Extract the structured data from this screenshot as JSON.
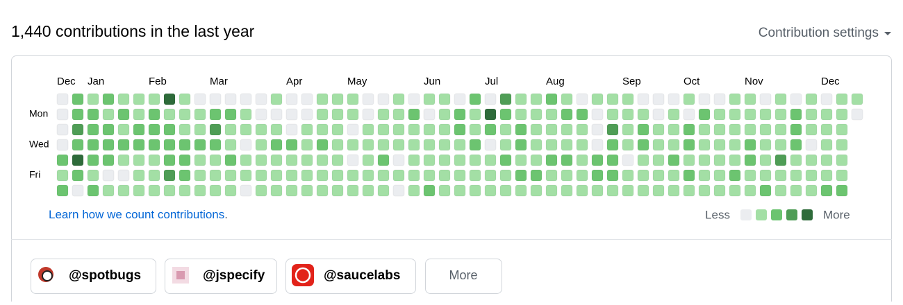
{
  "header": {
    "title": "1,440 contributions in the last year",
    "settings": "Contribution settings"
  },
  "calendar": {
    "months": [
      "Dec",
      null,
      "Jan",
      null,
      null,
      null,
      "Feb",
      null,
      null,
      null,
      "Mar",
      null,
      null,
      null,
      null,
      "Apr",
      null,
      null,
      null,
      "May",
      null,
      null,
      null,
      null,
      "Jun",
      null,
      null,
      null,
      "Jul",
      null,
      null,
      null,
      "Aug",
      null,
      null,
      null,
      null,
      "Sep",
      null,
      null,
      null,
      "Oct",
      null,
      null,
      null,
      "Nov",
      null,
      null,
      null,
      null,
      "Dec",
      null,
      null
    ],
    "weekdays": [
      null,
      "Mon",
      null,
      "Wed",
      null,
      "Fri",
      null
    ],
    "level_colors": [
      "#ebedf0",
      "#a3dfa5",
      "#6cc470",
      "#4f9d56",
      "#2e6b3a"
    ],
    "days": [
      [
        0,
        2,
        1,
        2,
        1,
        1,
        1,
        4,
        1,
        0,
        0,
        0,
        0,
        0,
        1,
        0,
        0,
        1,
        1,
        1,
        0,
        0,
        1,
        0,
        1,
        1,
        0,
        2,
        0,
        3,
        1,
        1,
        2,
        1,
        0,
        1,
        1,
        1,
        0,
        0,
        0,
        1,
        0,
        0,
        1,
        1,
        0,
        1,
        0,
        1,
        0,
        1,
        1
      ],
      [
        0,
        2,
        2,
        1,
        2,
        1,
        2,
        1,
        1,
        1,
        2,
        2,
        1,
        0,
        0,
        0,
        0,
        1,
        1,
        1,
        0,
        1,
        1,
        2,
        0,
        1,
        2,
        1,
        4,
        2,
        1,
        1,
        1,
        2,
        2,
        0,
        1,
        1,
        1,
        0,
        1,
        0,
        2,
        1,
        1,
        1,
        1,
        1,
        2,
        1,
        1,
        1,
        0
      ],
      [
        0,
        3,
        2,
        2,
        1,
        2,
        2,
        2,
        1,
        1,
        3,
        1,
        1,
        1,
        1,
        0,
        1,
        1,
        1,
        0,
        1,
        1,
        1,
        1,
        1,
        1,
        2,
        1,
        2,
        1,
        2,
        1,
        1,
        1,
        1,
        0,
        3,
        1,
        2,
        1,
        1,
        2,
        1,
        1,
        1,
        1,
        1,
        1,
        2,
        1,
        1,
        1,
        null
      ],
      [
        0,
        2,
        2,
        2,
        2,
        2,
        2,
        2,
        2,
        2,
        2,
        1,
        0,
        1,
        2,
        2,
        1,
        2,
        1,
        1,
        1,
        1,
        1,
        1,
        1,
        1,
        1,
        2,
        0,
        1,
        2,
        1,
        1,
        1,
        1,
        0,
        2,
        1,
        2,
        1,
        1,
        2,
        1,
        1,
        1,
        2,
        1,
        1,
        2,
        0,
        1,
        1,
        null
      ],
      [
        2,
        4,
        2,
        2,
        1,
        1,
        1,
        2,
        2,
        1,
        1,
        2,
        1,
        1,
        1,
        1,
        1,
        1,
        1,
        0,
        1,
        2,
        0,
        1,
        1,
        1,
        1,
        1,
        1,
        2,
        1,
        1,
        2,
        2,
        1,
        2,
        2,
        0,
        1,
        1,
        2,
        1,
        1,
        1,
        1,
        2,
        1,
        3,
        1,
        1,
        1,
        1,
        null
      ],
      [
        1,
        2,
        1,
        0,
        0,
        1,
        1,
        3,
        2,
        1,
        1,
        1,
        1,
        1,
        1,
        1,
        1,
        1,
        1,
        1,
        1,
        1,
        1,
        1,
        1,
        1,
        1,
        1,
        1,
        1,
        2,
        2,
        1,
        1,
        1,
        2,
        2,
        1,
        1,
        1,
        1,
        2,
        1,
        1,
        2,
        1,
        1,
        1,
        1,
        1,
        1,
        1,
        null
      ],
      [
        2,
        0,
        2,
        1,
        1,
        1,
        1,
        1,
        1,
        1,
        1,
        1,
        0,
        1,
        1,
        1,
        1,
        1,
        1,
        1,
        1,
        1,
        0,
        1,
        2,
        1,
        1,
        1,
        1,
        1,
        1,
        1,
        1,
        1,
        1,
        1,
        1,
        1,
        1,
        1,
        1,
        1,
        1,
        1,
        1,
        1,
        2,
        1,
        1,
        1,
        2,
        2,
        null
      ]
    ],
    "learn": "Learn how we count contributions",
    "learn_end": ".",
    "legend": {
      "less": "Less",
      "more": "More",
      "levels": [
        0,
        1,
        2,
        3,
        4
      ]
    }
  },
  "orgs": [
    "@spotbugs",
    "@jspecify",
    "@saucelabs"
  ],
  "more": "More"
}
